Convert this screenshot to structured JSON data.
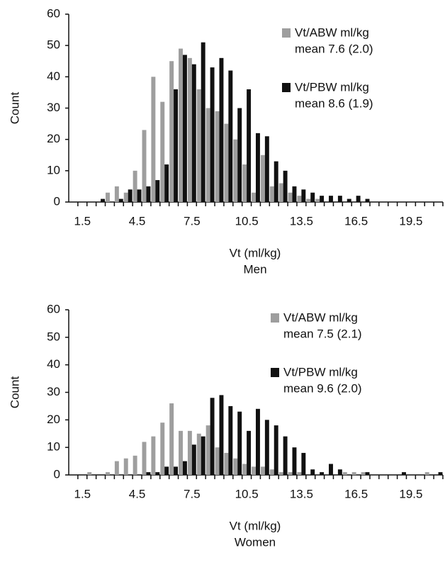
{
  "chart_data": [
    {
      "type": "bar",
      "subtitle": "Men",
      "xlabel": "Vt (ml/kg)",
      "ylabel": "Count",
      "x": [
        1,
        1.5,
        2,
        2.5,
        3,
        3.5,
        4,
        4.5,
        5,
        5.5,
        6,
        6.5,
        7,
        7.5,
        8,
        8.5,
        9,
        9.5,
        10,
        10.5,
        11,
        11.5,
        12,
        12.5,
        13,
        13.5,
        14,
        14.5,
        15,
        15.5,
        16,
        16.5,
        17,
        17.5,
        18,
        18.5,
        19,
        19.5,
        20,
        20.5,
        21
      ],
      "xlim": [
        0.75,
        21.25
      ],
      "xticks": [
        1.5,
        4.5,
        7.5,
        10.5,
        13.5,
        16.5,
        19.5
      ],
      "ylim": [
        0,
        60
      ],
      "yticks": [
        0,
        10,
        20,
        30,
        40,
        50,
        60
      ],
      "series": [
        {
          "name": "Vt/ABW ml/kg",
          "note": "mean 7.6 (2.0)",
          "color": "#9e9e9e",
          "values": [
            0,
            0,
            0,
            0,
            3,
            5,
            3,
            10,
            23,
            40,
            32,
            45,
            49,
            46,
            36,
            30,
            29,
            25,
            20,
            12,
            3,
            15,
            5,
            6,
            3,
            2,
            1,
            1,
            0,
            0,
            0,
            0,
            0,
            0,
            0,
            0,
            0,
            0,
            0,
            0,
            0
          ]
        },
        {
          "name": "Vt/PBW ml/kg",
          "note": "mean 8.6 (1.9)",
          "color": "#111111",
          "values": [
            0,
            0,
            0,
            1,
            0,
            1,
            4,
            4,
            5,
            7,
            12,
            36,
            47,
            44,
            51,
            43,
            46,
            42,
            30,
            36,
            22,
            21,
            13,
            10,
            5,
            4,
            3,
            2,
            2,
            2,
            1,
            2,
            1,
            0,
            0,
            0,
            0,
            0,
            0,
            0,
            0
          ]
        }
      ]
    },
    {
      "type": "bar",
      "subtitle": "Women",
      "xlabel": "Vt (ml/kg)",
      "ylabel": "Count",
      "x": [
        1,
        1.5,
        2,
        2.5,
        3,
        3.5,
        4,
        4.5,
        5,
        5.5,
        6,
        6.5,
        7,
        7.5,
        8,
        8.5,
        9,
        9.5,
        10,
        10.5,
        11,
        11.5,
        12,
        12.5,
        13,
        13.5,
        14,
        14.5,
        15,
        15.5,
        16,
        16.5,
        17,
        17.5,
        18,
        18.5,
        19,
        19.5,
        20,
        20.5,
        21
      ],
      "xlim": [
        0.75,
        21.25
      ],
      "xticks": [
        1.5,
        4.5,
        7.5,
        10.5,
        13.5,
        16.5,
        19.5
      ],
      "ylim": [
        0,
        60
      ],
      "yticks": [
        0,
        10,
        20,
        30,
        40,
        50,
        60
      ],
      "series": [
        {
          "name": "Vt/ABW ml/kg",
          "note": "mean 7.5 (2.1)",
          "color": "#9e9e9e",
          "values": [
            0,
            0,
            1,
            0,
            1,
            5,
            6,
            7,
            12,
            14,
            19,
            26,
            16,
            16,
            15,
            18,
            10,
            8,
            6,
            4,
            3,
            3,
            2,
            1,
            1,
            1,
            0,
            0,
            0,
            0,
            1,
            1,
            1,
            0,
            0,
            0,
            0,
            0,
            0,
            1,
            0
          ]
        },
        {
          "name": "Vt/PBW ml/kg",
          "note": "mean 9.6 (2.0)",
          "color": "#111111",
          "values": [
            0,
            0,
            0,
            0,
            0,
            0,
            0,
            0,
            1,
            1,
            3,
            3,
            5,
            11,
            14,
            28,
            29,
            25,
            23,
            16,
            24,
            20,
            18,
            14,
            10,
            8,
            2,
            1,
            4,
            2,
            0,
            0,
            1,
            0,
            0,
            0,
            1,
            0,
            0,
            0,
            1
          ]
        }
      ]
    }
  ]
}
